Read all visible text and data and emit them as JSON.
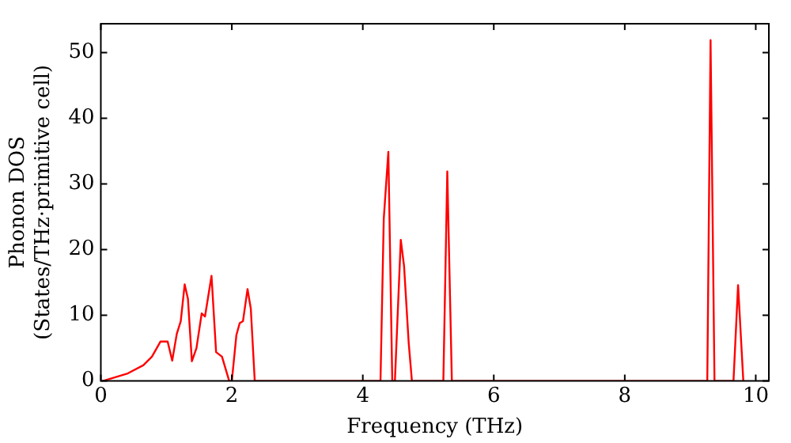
{
  "chart_data": {
    "type": "line",
    "xlabel": "Frequency (THz)",
    "ylabel": "Phonon DOS\n(States/THz·primitive cell)",
    "xlim": [
      0,
      10.2
    ],
    "ylim": [
      0,
      54.4
    ],
    "xticks": [
      0,
      2,
      4,
      6,
      8,
      10
    ],
    "yticks": [
      0,
      10,
      20,
      30,
      40,
      50
    ],
    "grid": false,
    "legend": false,
    "marker": "none",
    "line_style": "solid",
    "series": [
      {
        "color": "#ff0000",
        "x": [
          0.03,
          0.4,
          0.65,
          0.78,
          0.91,
          1.02,
          1.09,
          1.16,
          1.22,
          1.28,
          1.33,
          1.39,
          1.46,
          1.54,
          1.59,
          1.69,
          1.76,
          1.85,
          1.96,
          2.0,
          2.07,
          2.12,
          2.17,
          2.24,
          2.29,
          2.35,
          4.27,
          4.32,
          4.39,
          4.45,
          4.49,
          4.58,
          4.63,
          4.7,
          4.75,
          5.23,
          5.29,
          5.36,
          9.26,
          9.31,
          9.37,
          9.66,
          9.73,
          9.81
        ],
        "values": [
          0,
          1.1,
          2.4,
          3.7,
          6,
          6,
          3.1,
          7.2,
          9.1,
          14.7,
          12.5,
          3,
          5,
          10.3,
          9.8,
          16,
          4.4,
          3.7,
          0,
          0,
          7,
          8.8,
          9.1,
          14,
          11,
          0,
          0,
          24.7,
          34.9,
          0,
          0,
          21.5,
          17.5,
          5.9,
          0,
          0,
          31.9,
          0,
          0,
          51.9,
          0,
          0,
          14.6,
          0
        ]
      }
    ]
  }
}
